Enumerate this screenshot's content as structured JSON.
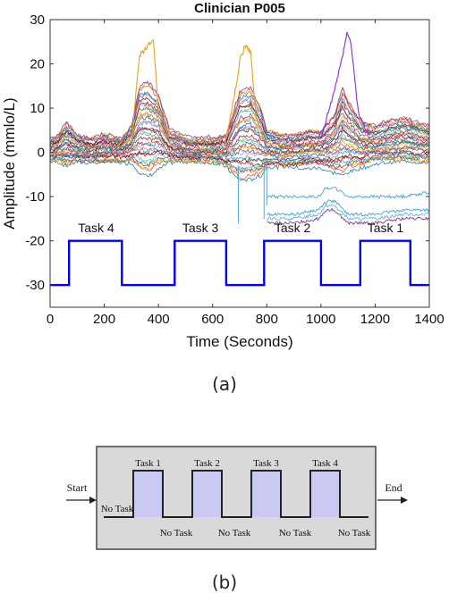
{
  "panel_a": {
    "caption": "(a)"
  },
  "panel_b": {
    "caption": "(b)",
    "start_label": "Start",
    "end_label": "End",
    "task_labels": [
      "Task 1",
      "Task 2",
      "Task 3",
      "Task 4"
    ],
    "no_task_label": "No Task",
    "colors": {
      "background": "#d9d9d9",
      "task_fill": "#c9c9f2",
      "line": "#222222"
    }
  },
  "chart_data": {
    "type": "line",
    "title": "Clinician P005",
    "xlabel": "Time (Seconds)",
    "ylabel": "Amplitude (mmlo/L)",
    "xlim": [
      0,
      1400
    ],
    "ylim": [
      -35,
      30
    ],
    "xticks": [
      0,
      200,
      400,
      600,
      800,
      1000,
      1200,
      1400
    ],
    "yticks": [
      -30,
      -20,
      -10,
      0,
      10,
      20,
      30
    ],
    "grid": false,
    "task_block": {
      "color": "#0000ee",
      "x": [
        0,
        70,
        70,
        265,
        265,
        460,
        460,
        650,
        650,
        790,
        790,
        1000,
        1000,
        1145,
        1145,
        1330,
        1330,
        1400
      ],
      "y": [
        -30,
        -30,
        -20,
        -20,
        -30,
        -30,
        -20,
        -20,
        -30,
        -30,
        -20,
        -20,
        -30,
        -30,
        -20,
        -20,
        -30,
        -30
      ]
    },
    "task_annotations": [
      {
        "label": "Task 4",
        "x": 170,
        "y": -18
      },
      {
        "label": "Task 3",
        "x": 555,
        "y": -18
      },
      {
        "label": "Task 2",
        "x": 895,
        "y": -18
      },
      {
        "label": "Task 1",
        "x": 1238,
        "y": -18
      }
    ],
    "channel_envelope": {
      "x": [
        0,
        30,
        60,
        100,
        150,
        200,
        260,
        300,
        330,
        360,
        400,
        440,
        480,
        520,
        560,
        600,
        650,
        680,
        700,
        740,
        780,
        800,
        850,
        900,
        950,
        1000,
        1050,
        1080,
        1100,
        1150,
        1200,
        1250,
        1300,
        1350,
        1400
      ],
      "upper": [
        3,
        4,
        7,
        4,
        3,
        4,
        3,
        6,
        15,
        16,
        13,
        5,
        4,
        3,
        3,
        3,
        4,
        10,
        14,
        15,
        10,
        5,
        4,
        4,
        5,
        5,
        9,
        15,
        12,
        7,
        6,
        7,
        8,
        7,
        6
      ],
      "lower": [
        -2,
        -2,
        -3,
        -2,
        -2,
        -2,
        -2,
        -2,
        -4,
        -5,
        -3,
        -2,
        -2,
        -2,
        -2,
        -2,
        -3,
        -5,
        -6,
        -6,
        -5,
        -3,
        -3,
        -3,
        -3,
        -3,
        -4,
        -5,
        -4,
        -3,
        -2,
        -2,
        -2,
        -2,
        -2
      ]
    },
    "peak_traces": [
      {
        "color": "#e8a020",
        "x": [
          300,
          330,
          360,
          370,
          380,
          400,
          440
        ],
        "y": [
          2,
          22,
          24,
          25,
          26,
          10,
          3
        ]
      },
      {
        "color": "#e8a020",
        "x": [
          650,
          690,
          700,
          720,
          740,
          760,
          790
        ],
        "y": [
          3,
          16,
          21,
          24,
          23,
          8,
          3
        ]
      },
      {
        "color": "#8a2be2",
        "x": [
          1000,
          1050,
          1080,
          1095,
          1110,
          1140,
          1180
        ],
        "y": [
          3,
          14,
          22,
          27,
          25,
          8,
          4
        ]
      }
    ],
    "low_traces": [
      {
        "color": "#3fa4dd",
        "x": [
          800,
          900,
          990,
          1020,
          1050,
          1100,
          1200,
          1300,
          1400
        ],
        "y": [
          -10,
          -10,
          -10,
          -8,
          -8,
          -10,
          -10,
          -10,
          -9
        ]
      },
      {
        "color": "#3fa4dd",
        "x": [
          800,
          900,
          990,
          1020,
          1050,
          1100,
          1200,
          1300,
          1400
        ],
        "y": [
          -14,
          -14,
          -13,
          -11,
          -11,
          -14,
          -14,
          -13,
          -13
        ]
      },
      {
        "color": "#8b3a8b",
        "x": [
          800,
          900,
          990,
          1020,
          1050,
          1100,
          1200,
          1300,
          1400
        ],
        "y": [
          -16,
          -16,
          -15,
          -13,
          -13,
          -16,
          -16,
          -15,
          -15
        ]
      },
      {
        "color": "#5bb8e8",
        "x": [
          800,
          900,
          990,
          1020,
          1050,
          1100,
          1200,
          1300,
          1400
        ],
        "y": [
          -15,
          -15,
          -14,
          -12,
          -12,
          -15,
          -15,
          -14,
          -14
        ]
      }
    ],
    "series_colors": [
      "#0072bd",
      "#d95319",
      "#edb120",
      "#7e2f8e",
      "#77ac30",
      "#4dbeee",
      "#a2142f",
      "#8b0000",
      "#20b2aa",
      "#ff69b4"
    ]
  }
}
